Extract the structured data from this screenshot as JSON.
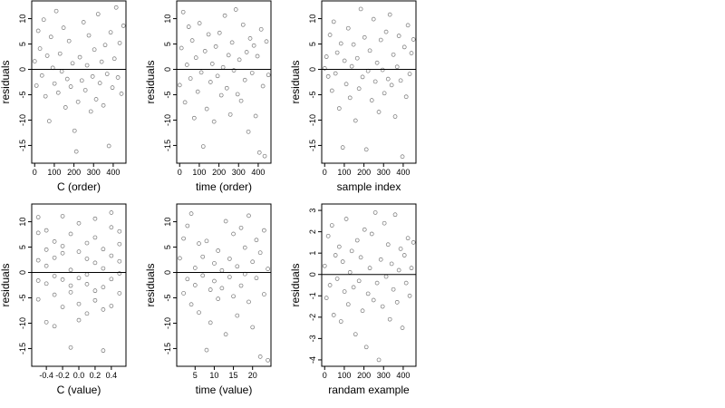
{
  "chart_data": [
    {
      "type": "scatter",
      "xlabel": "C (order)",
      "ylabel": "residuals",
      "xlim": [
        -15,
        465
      ],
      "ylim": [
        -18.5,
        13.5
      ],
      "xticks": [
        0,
        100,
        200,
        300,
        400
      ],
      "yticks": [
        -15,
        -10,
        -5,
        0,
        5,
        10
      ],
      "hline": 0,
      "grid": false,
      "points": {
        "x": [
          0,
          9,
          18,
          27,
          37,
          46,
          55,
          64,
          74,
          83,
          92,
          101,
          110,
          120,
          129,
          138,
          147,
          157,
          166,
          175,
          184,
          193,
          203,
          212,
          221,
          230,
          240,
          249,
          258,
          267,
          276,
          286,
          295,
          304,
          313,
          323,
          332,
          341,
          350,
          359,
          369,
          378,
          387,
          396,
          406,
          415,
          424,
          433,
          442,
          452
        ],
        "y": [
          1.6,
          -3.2,
          7.6,
          4.1,
          -1.2,
          9.8,
          -5.3,
          2.7,
          -10.2,
          6.4,
          0.3,
          -2.8,
          11.5,
          -4.6,
          3.1,
          -0.4,
          8.2,
          -7.5,
          -1.9,
          5.6,
          -3.4,
          1.2,
          -12.1,
          -16.2,
          -6.4,
          2.4,
          -2.2,
          9.3,
          -4.1,
          0.8,
          6.7,
          -8.3,
          -1.4,
          3.9,
          -5.9,
          10.9,
          -2.7,
          1.5,
          -7.1,
          4.8,
          -0.9,
          -15.1,
          7.3,
          -3.6,
          2.1,
          12.2,
          -1.6,
          5.2,
          -4.8,
          8.6
        ]
      }
    },
    {
      "type": "scatter",
      "xlabel": "time (order)",
      "ylabel": "residuals",
      "xlim": [
        -15,
        465
      ],
      "ylim": [
        -18.5,
        13.5
      ],
      "xticks": [
        0,
        100,
        200,
        300,
        400
      ],
      "yticks": [
        -15,
        -10,
        -5,
        0,
        5,
        10
      ],
      "hline": 0,
      "grid": false,
      "points": {
        "x": [
          0,
          9,
          18,
          27,
          37,
          46,
          55,
          64,
          74,
          83,
          92,
          101,
          110,
          120,
          129,
          138,
          147,
          157,
          166,
          175,
          184,
          193,
          203,
          212,
          221,
          230,
          240,
          249,
          258,
          267,
          276,
          286,
          295,
          304,
          313,
          323,
          332,
          341,
          350,
          359,
          369,
          378,
          387,
          396,
          406,
          415,
          424,
          433,
          442,
          452
        ],
        "y": [
          -3.1,
          4.2,
          11.3,
          -6.5,
          0.9,
          8.4,
          -1.8,
          5.7,
          -9.6,
          2.3,
          -4.4,
          9.1,
          -0.6,
          -15.2,
          3.6,
          -7.8,
          6.9,
          -2.5,
          1.1,
          -10.3,
          4.5,
          -1.3,
          7.2,
          -5.1,
          0.4,
          10.6,
          -3.7,
          2.8,
          -8.9,
          5.3,
          -0.2,
          11.8,
          -4.9,
          1.9,
          -6.2,
          8.8,
          -2.1,
          3.4,
          -12.3,
          6.1,
          -0.7,
          4.7,
          -9.2,
          2.6,
          -16.4,
          7.9,
          -3.3,
          -17.1,
          5.5,
          -1.1
        ]
      }
    },
    {
      "type": "scatter",
      "xlabel": "sample index",
      "ylabel": "residuals",
      "xlim": [
        -15,
        465
      ],
      "ylim": [
        -18.5,
        13.5
      ],
      "xticks": [
        0,
        100,
        200,
        300,
        400
      ],
      "yticks": [
        -15,
        -10,
        -5,
        0,
        5,
        10
      ],
      "hline": 0,
      "grid": false,
      "points": {
        "x": [
          0,
          9,
          18,
          27,
          37,
          46,
          55,
          64,
          74,
          83,
          92,
          101,
          110,
          120,
          129,
          138,
          147,
          157,
          166,
          175,
          184,
          193,
          203,
          212,
          221,
          230,
          240,
          249,
          258,
          267,
          276,
          286,
          295,
          304,
          313,
          323,
          332,
          341,
          350,
          359,
          369,
          378,
          387,
          396,
          406,
          415,
          424,
          433,
          442,
          452
        ],
        "y": [
          0.2,
          2.5,
          -1.4,
          6.8,
          -4.2,
          9.4,
          -0.8,
          3.3,
          -7.7,
          5.1,
          -15.4,
          1.7,
          -2.9,
          8.1,
          -5.6,
          0.6,
          4.9,
          -10.1,
          2.2,
          -3.8,
          11.9,
          -1.5,
          6.3,
          -15.8,
          -0.3,
          3.7,
          -6.1,
          9.9,
          -2.4,
          1.3,
          -8.4,
          5.8,
          -0.1,
          -4.7,
          7.4,
          -1.9,
          10.8,
          -3.1,
          2.9,
          -9.3,
          0.5,
          6.6,
          -2.2,
          -17.2,
          4.4,
          -5.4,
          8.7,
          -0.9,
          3.2,
          5.9
        ]
      }
    },
    {
      "type": "scatter",
      "xlabel": "C (value)",
      "ylabel": "residuals",
      "xlim": [
        -0.58,
        0.58
      ],
      "ylim": [
        -18.5,
        13.5
      ],
      "xticks": [
        -0.4,
        -0.2,
        0.0,
        0.2,
        0.4
      ],
      "yticks": [
        -15,
        -10,
        -5,
        0,
        5,
        10
      ],
      "hline": 0,
      "grid": false,
      "points": {
        "x": [
          -0.5,
          -0.5,
          -0.5,
          -0.5,
          -0.5,
          -0.4,
          -0.4,
          -0.4,
          -0.4,
          -0.4,
          -0.3,
          -0.3,
          -0.3,
          -0.3,
          -0.3,
          -0.2,
          -0.2,
          -0.2,
          -0.2,
          -0.2,
          -0.1,
          -0.1,
          -0.1,
          -0.1,
          -0.1,
          0.0,
          0.0,
          0.0,
          0.0,
          0.0,
          0.1,
          0.1,
          0.1,
          0.1,
          0.1,
          0.2,
          0.2,
          0.2,
          0.2,
          0.2,
          0.3,
          0.3,
          0.3,
          0.3,
          0.3,
          0.4,
          0.4,
          0.4,
          0.4,
          0.4,
          0.5,
          0.5,
          0.5,
          0.5,
          0.5
        ],
        "y": [
          7.8,
          2.4,
          -1.6,
          -5.3,
          10.9,
          4.5,
          -2.2,
          -9.8,
          1.3,
          8.3,
          -0.7,
          6.1,
          -4.4,
          2.9,
          -10.6,
          11.1,
          3.8,
          -1.4,
          -6.8,
          5.2,
          -2.6,
          7.6,
          0.5,
          -3.9,
          -14.8,
          -1.1,
          -6.2,
          4.1,
          -9.4,
          9.7,
          2.7,
          -2.3,
          -8.1,
          5.8,
          -0.4,
          10.6,
          -3.6,
          1.9,
          -5.5,
          6.9,
          -15.4,
          0.8,
          -2.9,
          4.6,
          -7.3,
          8.9,
          -1.3,
          3.3,
          -6.6,
          11.8,
          5.6,
          -0.2,
          8.1,
          -4.1,
          2.2
        ]
      }
    },
    {
      "type": "scatter",
      "xlabel": "time (value)",
      "ylabel": "residuals",
      "xlim": [
        0.2,
        24.8
      ],
      "ylim": [
        -18.5,
        13.5
      ],
      "xticks": [
        5,
        10,
        15,
        20
      ],
      "yticks": [
        -15,
        -10,
        -5,
        0,
        5,
        10
      ],
      "hline": 0,
      "grid": false,
      "points": {
        "x": [
          1,
          2,
          2,
          3,
          3,
          4,
          4,
          5,
          5,
          6,
          6,
          7,
          7,
          8,
          8,
          9,
          9,
          10,
          10,
          11,
          11,
          12,
          12,
          13,
          13,
          14,
          14,
          15,
          15,
          16,
          16,
          17,
          17,
          18,
          18,
          19,
          19,
          20,
          20,
          21,
          21,
          22,
          22,
          23,
          23,
          24,
          24
        ],
        "y": [
          2.8,
          -4.1,
          6.7,
          -1.3,
          9.2,
          11.6,
          -6.3,
          0.9,
          -2.5,
          5.7,
          -7.9,
          3.1,
          -0.6,
          6.2,
          -15.3,
          -3.4,
          -9.9,
          1.8,
          -1.7,
          4.3,
          -5.2,
          0.4,
          -3.1,
          10.1,
          -12.2,
          2.7,
          -0.9,
          7.6,
          -4.7,
          1.2,
          -8.5,
          8.8,
          -2.6,
          4.9,
          -0.3,
          11.2,
          -5.8,
          -10.8,
          2.1,
          -1.1,
          6.4,
          -16.6,
          3.9,
          -4.3,
          8.3,
          -17.3,
          0.7
        ]
      }
    },
    {
      "type": "scatter",
      "xlabel": "randam example",
      "ylabel": "residuals",
      "xlim": [
        -15,
        465
      ],
      "ylim": [
        -4.3,
        3.3
      ],
      "xticks": [
        0,
        100,
        200,
        300,
        400
      ],
      "yticks": [
        -4,
        -3,
        -2,
        -1,
        0,
        1,
        2,
        3
      ],
      "hline": 0,
      "grid": false,
      "points": {
        "x": [
          0,
          9,
          18,
          27,
          37,
          46,
          55,
          64,
          74,
          83,
          92,
          101,
          110,
          120,
          129,
          138,
          147,
          157,
          166,
          175,
          184,
          193,
          203,
          212,
          221,
          230,
          240,
          249,
          258,
          267,
          276,
          286,
          295,
          304,
          313,
          323,
          332,
          341,
          350,
          359,
          369,
          378,
          387,
          396,
          406,
          415,
          424,
          433,
          442,
          452
        ],
        "y": [
          0.4,
          -1.1,
          1.8,
          -0.5,
          2.3,
          -1.9,
          0.9,
          -0.2,
          1.3,
          -2.2,
          0.6,
          -0.8,
          2.6,
          -1.4,
          0.1,
          1.1,
          -0.6,
          -2.8,
          1.6,
          -0.3,
          0.8,
          -1.7,
          2.1,
          -3.4,
          -0.9,
          0.3,
          1.9,
          -1.2,
          2.9,
          -0.4,
          -4.0,
          0.7,
          -1.5,
          2.4,
          -0.1,
          1.4,
          -2.1,
          0.5,
          -0.7,
          2.8,
          -1.3,
          0.2,
          1.2,
          -2.5,
          0.9,
          -0.4,
          1.7,
          -1.0,
          0.3,
          1.5
        ]
      }
    }
  ]
}
